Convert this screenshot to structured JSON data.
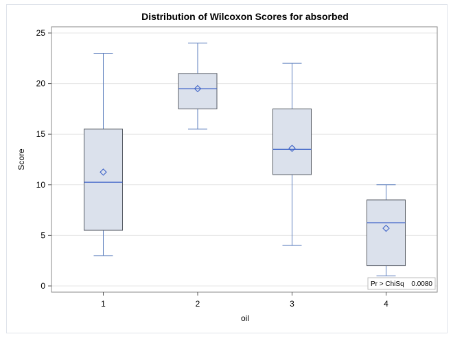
{
  "chart_data": {
    "type": "box",
    "title": "Distribution of Wilcoxon Scores for absorbed",
    "xlabel": "oil",
    "ylabel": "Score",
    "categories": [
      "1",
      "2",
      "3",
      "4"
    ],
    "ylim": [
      0,
      25
    ],
    "yticks": [
      0,
      5,
      10,
      15,
      20,
      25
    ],
    "grid": true,
    "boxes": [
      {
        "category": "1",
        "min": 3.0,
        "q1": 5.5,
        "median": 10.25,
        "q3": 15.5,
        "max": 23.0,
        "mean": 11.25
      },
      {
        "category": "2",
        "min": 15.5,
        "q1": 17.5,
        "median": 19.5,
        "q3": 21.0,
        "max": 24.0,
        "mean": 19.5
      },
      {
        "category": "3",
        "min": 4.0,
        "q1": 11.0,
        "median": 13.5,
        "q3": 17.5,
        "max": 22.0,
        "mean": 13.6
      },
      {
        "category": "4",
        "min": 1.0,
        "q1": 2.0,
        "median": 6.25,
        "q3": 8.5,
        "max": 10.0,
        "mean": 5.7
      }
    ],
    "inset": {
      "label": "Pr > ChiSq",
      "value": "0.0080",
      "position": "bottom-right"
    },
    "colors": {
      "box_fill": "#dbe1ec",
      "box_stroke": "#555a63",
      "whisker": "#5b7dbd",
      "median": "#3f64c8",
      "mean_marker": "#3f64c8",
      "grid": "#e4e4e4"
    }
  }
}
